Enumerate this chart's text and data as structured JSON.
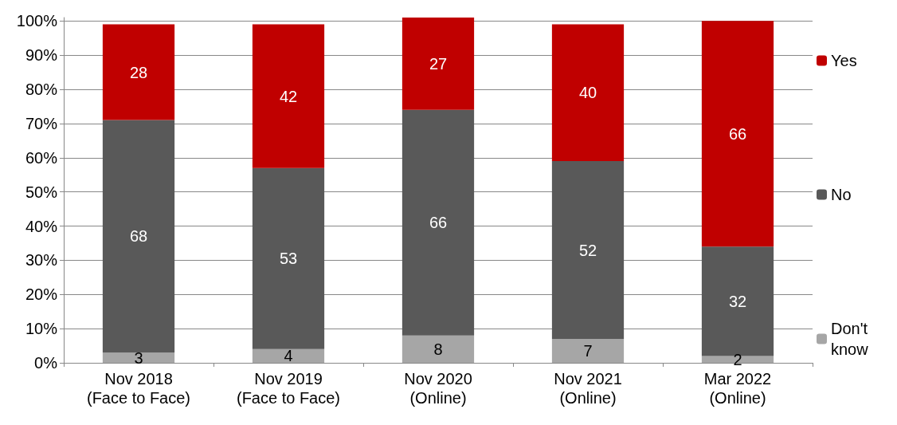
{
  "chart_data": {
    "type": "bar",
    "stacked": true,
    "categories": [
      "Nov 2018\n(Face to Face)",
      "Nov 2019\n(Face to Face)",
      "Nov 2020\n(Online)",
      "Nov 2021\n(Online)",
      "Mar 2022\n(Online)"
    ],
    "series": [
      {
        "name": "Don't know",
        "color": "#a6a6a6",
        "values": [
          3,
          4,
          8,
          7,
          2
        ]
      },
      {
        "name": "No",
        "color": "#595959",
        "values": [
          68,
          53,
          66,
          52,
          32
        ]
      },
      {
        "name": "Yes",
        "color": "#c00000",
        "values": [
          28,
          42,
          27,
          40,
          66
        ]
      }
    ],
    "ylim": [
      0,
      101
    ],
    "yticks": [
      {
        "value": 0,
        "label": "0%"
      },
      {
        "value": 10,
        "label": "10%"
      },
      {
        "value": 20,
        "label": "20%"
      },
      {
        "value": 30,
        "label": "30%"
      },
      {
        "value": 40,
        "label": "40%"
      },
      {
        "value": 50,
        "label": "50%"
      },
      {
        "value": 60,
        "label": "60%"
      },
      {
        "value": 70,
        "label": "70%"
      },
      {
        "value": 80,
        "label": "80%"
      },
      {
        "value": 90,
        "label": "90%"
      },
      {
        "value": 100,
        "label": "100%"
      }
    ],
    "grid": "y",
    "legend": "right",
    "data_labels": true
  }
}
